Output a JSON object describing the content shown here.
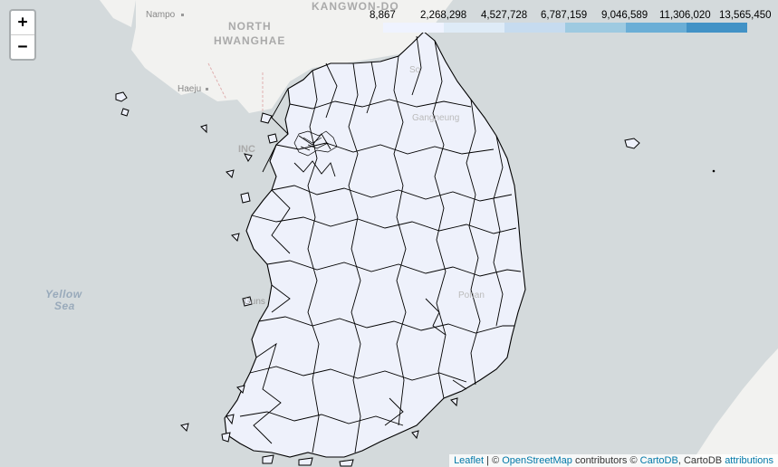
{
  "zoom": {
    "in_label": "+",
    "out_label": "−"
  },
  "legend": {
    "ticks": [
      "8,867",
      "2,268,298",
      "4,527,728",
      "6,787,159",
      "9,046,589",
      "11,306,020",
      "13,565,450"
    ],
    "colors": [
      "#eff3ff",
      "#deebf7",
      "#c6dbef",
      "#9ecae1",
      "#6baed6",
      "#4292c6",
      "#2171b5"
    ]
  },
  "place_labels": {
    "nampo": "Nampo",
    "north_hwanghae_1": "NORTH",
    "north_hwanghae_2": "HWANGHAE",
    "kangwon_do": "KANGWON-DO",
    "haeju": "Haeju",
    "yellow_sea_1": "Yellow",
    "yellow_sea_2": "Sea",
    "incheon": "INC",
    "gunsan": "Guns",
    "gangneung": "Gangneung",
    "pohang": "Pohan",
    "sokcho": "So"
  },
  "attribution": {
    "leaflet": "Leaflet",
    "sep": " | © ",
    "osm": "OpenStreetMap",
    "contributors": " contributors © ",
    "cartodb": "CartoDB",
    "cartodb_text": ", CartoDB ",
    "attributions": "attributions"
  }
}
